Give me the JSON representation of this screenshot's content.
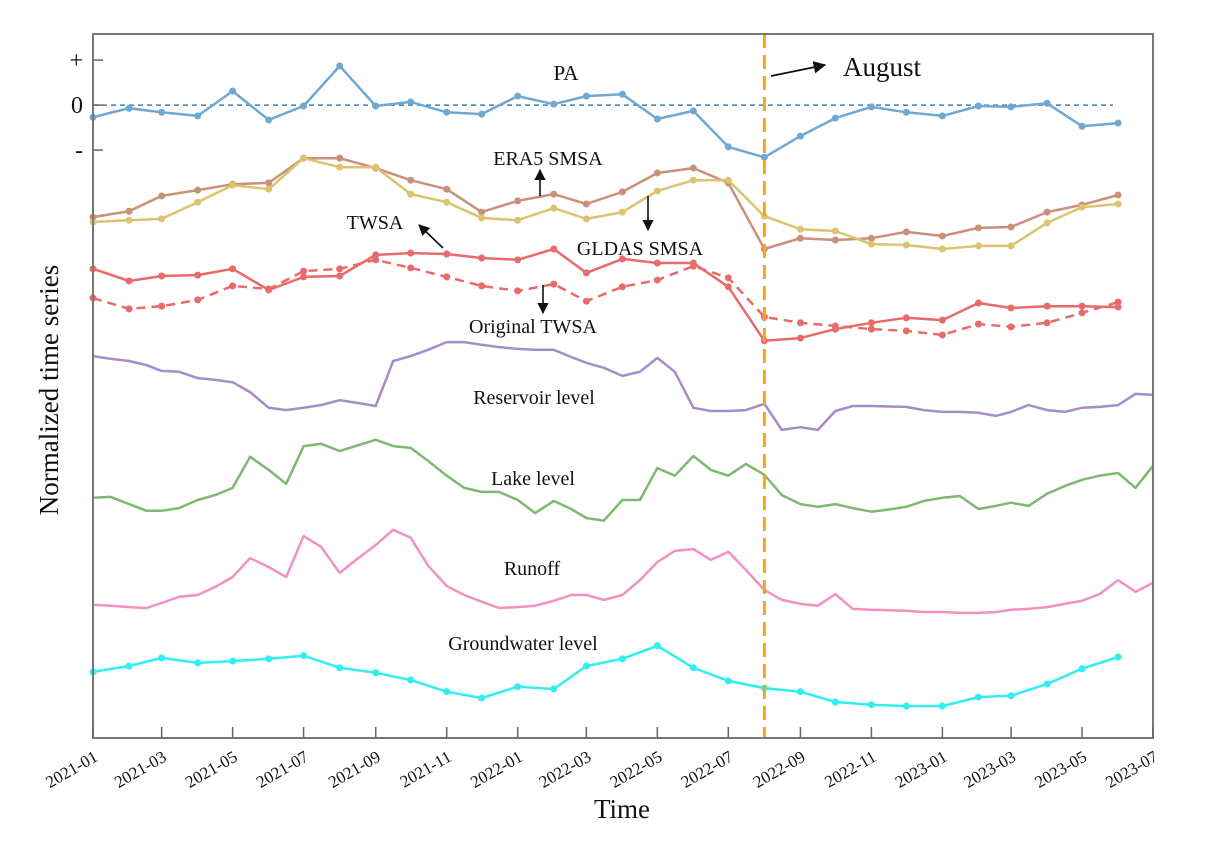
{
  "chart_data": {
    "type": "line",
    "title": "",
    "xlabel": "Time",
    "ylabel": "Normalized time series",
    "xlim": [
      "2021-01-01",
      "2023-07-01"
    ],
    "ylim": [
      -14.07,
      1.58
    ],
    "grid": false,
    "legend": "none (series labelled inline)",
    "x_tick_labels": [
      "2021-01",
      "2021-03",
      "2021-05",
      "2021-07",
      "2021-09",
      "2021-11",
      "2022-01",
      "2022-03",
      "2022-05",
      "2022-07",
      "2022-09",
      "2022-11",
      "2023-01",
      "2023-03",
      "2023-05",
      "2023-07"
    ],
    "y_ticks": [
      {
        "value": 1,
        "label": "+"
      },
      {
        "value": 0,
        "label": "0"
      },
      {
        "value": -1,
        "label": "-"
      }
    ],
    "monthly_dates": [
      "2021-01-01",
      "2021-02-01",
      "2021-03-01",
      "2021-04-01",
      "2021-05-01",
      "2021-06-01",
      "2021-07-01",
      "2021-08-01",
      "2021-09-01",
      "2021-10-01",
      "2021-11-01",
      "2021-12-01",
      "2022-01-01",
      "2022-02-01",
      "2022-03-01",
      "2022-04-01",
      "2022-05-01",
      "2022-06-01",
      "2022-07-01",
      "2022-08-01",
      "2022-09-01",
      "2022-10-01",
      "2022-11-01",
      "2022-12-01",
      "2023-01-01",
      "2023-02-01",
      "2023-03-01",
      "2023-04-01",
      "2023-05-01",
      "2023-06-01"
    ],
    "semimonthly_dates": [
      "2021-01-01",
      "2021-01-16",
      "2021-02-01",
      "2021-02-16",
      "2021-03-01",
      "2021-03-16",
      "2021-04-01",
      "2021-04-16",
      "2021-05-01",
      "2021-05-16",
      "2021-06-01",
      "2021-06-16",
      "2021-07-01",
      "2021-07-16",
      "2021-08-01",
      "2021-08-16",
      "2021-09-01",
      "2021-09-16",
      "2021-10-01",
      "2021-10-16",
      "2021-11-01",
      "2021-11-16",
      "2021-12-01",
      "2021-12-16",
      "2022-01-01",
      "2022-01-16",
      "2022-02-01",
      "2022-02-16",
      "2022-03-01",
      "2022-03-16",
      "2022-04-01",
      "2022-04-16",
      "2022-05-01",
      "2022-05-16",
      "2022-06-01",
      "2022-06-16",
      "2022-07-01",
      "2022-07-16",
      "2022-08-01",
      "2022-08-16",
      "2022-09-01",
      "2022-09-16",
      "2022-10-01",
      "2022-10-16",
      "2022-11-01",
      "2022-11-16",
      "2022-12-01",
      "2022-12-16",
      "2023-01-01",
      "2023-01-16",
      "2023-02-01",
      "2023-02-16",
      "2023-03-01",
      "2023-03-16",
      "2023-04-01",
      "2023-04-16",
      "2023-05-01",
      "2023-05-16",
      "2023-06-01",
      "2023-06-16",
      "2023-07-01"
    ],
    "series": [
      {
        "name": "PA",
        "x": "monthly_dates",
        "markers": true,
        "dashed": false,
        "color": "#6fa8d2",
        "values": [
          -0.27,
          -0.07,
          -0.16,
          -0.24,
          0.31,
          -0.33,
          -0.02,
          0.87,
          -0.02,
          0.07,
          -0.16,
          -0.2,
          0.2,
          0.02,
          0.2,
          0.24,
          -0.31,
          -0.13,
          -0.93,
          -1.16,
          -0.69,
          -0.29,
          -0.04,
          -0.16,
          -0.24,
          -0.02,
          -0.04,
          0.04,
          -0.47,
          -0.4
        ]
      },
      {
        "name": "ERA5 SMSA",
        "x": "monthly_dates",
        "markers": true,
        "dashed": false,
        "color": "#c9917a",
        "values": [
          -2.49,
          -2.36,
          -2.02,
          -1.89,
          -1.76,
          -1.73,
          -1.18,
          -1.18,
          -1.4,
          -1.67,
          -1.87,
          -2.38,
          -2.13,
          -1.98,
          -2.2,
          -1.93,
          -1.51,
          -1.4,
          -1.73,
          -3.2,
          -2.96,
          -3.0,
          -2.96,
          -2.82,
          -2.91,
          -2.73,
          -2.71,
          -2.38,
          -2.22,
          -2.0
        ]
      },
      {
        "name": "GLDAS SMSA",
        "x": "monthly_dates",
        "markers": true,
        "dashed": false,
        "color": "#dcc46e",
        "values": [
          -2.6,
          -2.56,
          -2.53,
          -2.16,
          -1.78,
          -1.87,
          -1.18,
          -1.38,
          -1.38,
          -1.98,
          -2.16,
          -2.51,
          -2.56,
          -2.29,
          -2.53,
          -2.38,
          -1.91,
          -1.67,
          -1.67,
          -2.47,
          -2.76,
          -2.8,
          -3.09,
          -3.11,
          -3.2,
          -3.13,
          -3.13,
          -2.62,
          -2.27,
          -2.2
        ]
      },
      {
        "name": "TWSA",
        "x": "monthly_dates",
        "markers": true,
        "dashed": false,
        "color": "#e96a6a",
        "values": [
          -3.64,
          -3.91,
          -3.8,
          -3.78,
          -3.64,
          -4.11,
          -3.82,
          -3.8,
          -3.33,
          -3.29,
          -3.31,
          -3.4,
          -3.44,
          -3.2,
          -3.73,
          -3.42,
          -3.51,
          -3.51,
          -4.04,
          -5.24,
          -5.18,
          -4.98,
          -4.84,
          -4.73,
          -4.78,
          -4.4,
          -4.51,
          -4.47,
          -4.47,
          -4.49
        ]
      },
      {
        "name": "Original TWSA",
        "x": "monthly_dates",
        "markers": true,
        "dashed": true,
        "color": "#e96a6a",
        "values": [
          -4.29,
          -4.53,
          -4.47,
          -4.33,
          -4.02,
          -4.09,
          -3.69,
          -3.64,
          -3.44,
          -3.62,
          -3.82,
          -4.02,
          -4.13,
          -3.98,
          -4.36,
          -4.04,
          -3.89,
          -3.58,
          -3.84,
          -4.71,
          -4.84,
          -4.91,
          -4.98,
          -5.02,
          -5.11,
          -4.87,
          -4.93,
          -4.84,
          -4.62,
          -4.38
        ]
      },
      {
        "name": "Reservoir level",
        "x": "semimonthly_dates",
        "markers": false,
        "dashed": false,
        "color": "#a88bc9",
        "values": [
          -5.58,
          -5.64,
          -5.69,
          -5.78,
          -5.91,
          -5.93,
          -6.07,
          -6.11,
          -6.16,
          -6.38,
          -6.73,
          -6.78,
          -6.73,
          -6.67,
          -6.56,
          -6.62,
          -6.69,
          -5.69,
          -5.58,
          -5.44,
          -5.27,
          -5.27,
          -5.33,
          -5.38,
          -5.42,
          -5.44,
          -5.44,
          -5.6,
          -5.73,
          -5.84,
          -6.02,
          -5.93,
          -5.62,
          -5.93,
          -6.73,
          -6.8,
          -6.8,
          -6.78,
          -6.64,
          -7.22,
          -7.16,
          -7.22,
          -6.8,
          -6.69,
          -6.69,
          -6.7,
          -6.71,
          -6.78,
          -6.82,
          -6.82,
          -6.84,
          -6.91,
          -6.82,
          -6.67,
          -6.78,
          -6.82,
          -6.73,
          -6.71,
          -6.67,
          -6.42,
          -6.44
        ]
      },
      {
        "name": "Lake level",
        "x": "semimonthly_dates",
        "markers": false,
        "dashed": false,
        "color": "#7db972",
        "values": [
          -8.73,
          -8.71,
          -8.87,
          -9.02,
          -9.02,
          -8.96,
          -8.78,
          -8.67,
          -8.51,
          -7.82,
          -8.11,
          -8.42,
          -7.58,
          -7.53,
          -7.69,
          -7.57,
          -7.44,
          -7.58,
          -7.62,
          -7.91,
          -8.24,
          -8.51,
          -8.6,
          -8.6,
          -8.78,
          -9.07,
          -8.8,
          -8.98,
          -9.18,
          -9.24,
          -8.78,
          -8.78,
          -8.07,
          -8.24,
          -7.8,
          -8.11,
          -8.24,
          -7.98,
          -8.22,
          -8.67,
          -8.87,
          -8.93,
          -8.87,
          -8.96,
          -9.04,
          -8.99,
          -8.93,
          -8.8,
          -8.73,
          -8.69,
          -8.98,
          -8.91,
          -8.84,
          -8.91,
          -8.64,
          -8.47,
          -8.33,
          -8.24,
          -8.18,
          -8.51,
          -8.02
        ]
      },
      {
        "name": "Runoff",
        "x": "semimonthly_dates",
        "markers": false,
        "dashed": false,
        "color": "#f291c3",
        "values": [
          -11.11,
          -11.13,
          -11.16,
          -11.18,
          -11.07,
          -10.93,
          -10.89,
          -10.71,
          -10.49,
          -10.07,
          -10.27,
          -10.49,
          -9.58,
          -9.82,
          -10.4,
          -10.09,
          -9.78,
          -9.44,
          -9.62,
          -10.24,
          -10.69,
          -10.89,
          -11.04,
          -11.18,
          -11.16,
          -11.13,
          -11.02,
          -10.89,
          -10.89,
          -11.0,
          -10.89,
          -10.56,
          -10.16,
          -9.91,
          -9.87,
          -10.11,
          -9.93,
          -10.33,
          -10.78,
          -11.0,
          -11.09,
          -11.13,
          -10.87,
          -11.2,
          -11.22,
          -11.23,
          -11.24,
          -11.27,
          -11.27,
          -11.29,
          -11.29,
          -11.27,
          -11.22,
          -11.2,
          -11.16,
          -11.09,
          -11.02,
          -10.87,
          -10.56,
          -10.82,
          -10.62
        ]
      },
      {
        "name": "Groundwater level",
        "x": "monthly_dates",
        "markers": true,
        "dashed": false,
        "color": "#33eeee",
        "values": [
          -12.6,
          -12.47,
          -12.29,
          -12.4,
          -12.36,
          -12.31,
          -12.24,
          -12.51,
          -12.62,
          -12.78,
          -13.04,
          -13.18,
          -12.93,
          -12.98,
          -12.47,
          -12.31,
          -12.02,
          -12.51,
          -12.8,
          -12.96,
          -13.04,
          -13.27,
          -13.33,
          -13.36,
          -13.36,
          -13.16,
          -13.13,
          -12.87,
          -12.53,
          -12.27
        ]
      }
    ],
    "reference_lines": [
      {
        "type": "horizontal",
        "value": 0,
        "dashed": true,
        "color": "#3a7fb5"
      },
      {
        "type": "vertical",
        "date": "2022-08-01",
        "dashed": true,
        "color": "#f5a21f"
      }
    ],
    "annotations": {
      "pa": "PA",
      "era5": "ERA5 SMSA",
      "twsa": "TWSA",
      "gldas": "GLDAS SMSA",
      "original": "Original TWSA",
      "reservoir": "Reservoir level",
      "lake": "Lake level",
      "runoff": "Runoff",
      "groundwater": "Groundwater level",
      "august": "August"
    }
  }
}
